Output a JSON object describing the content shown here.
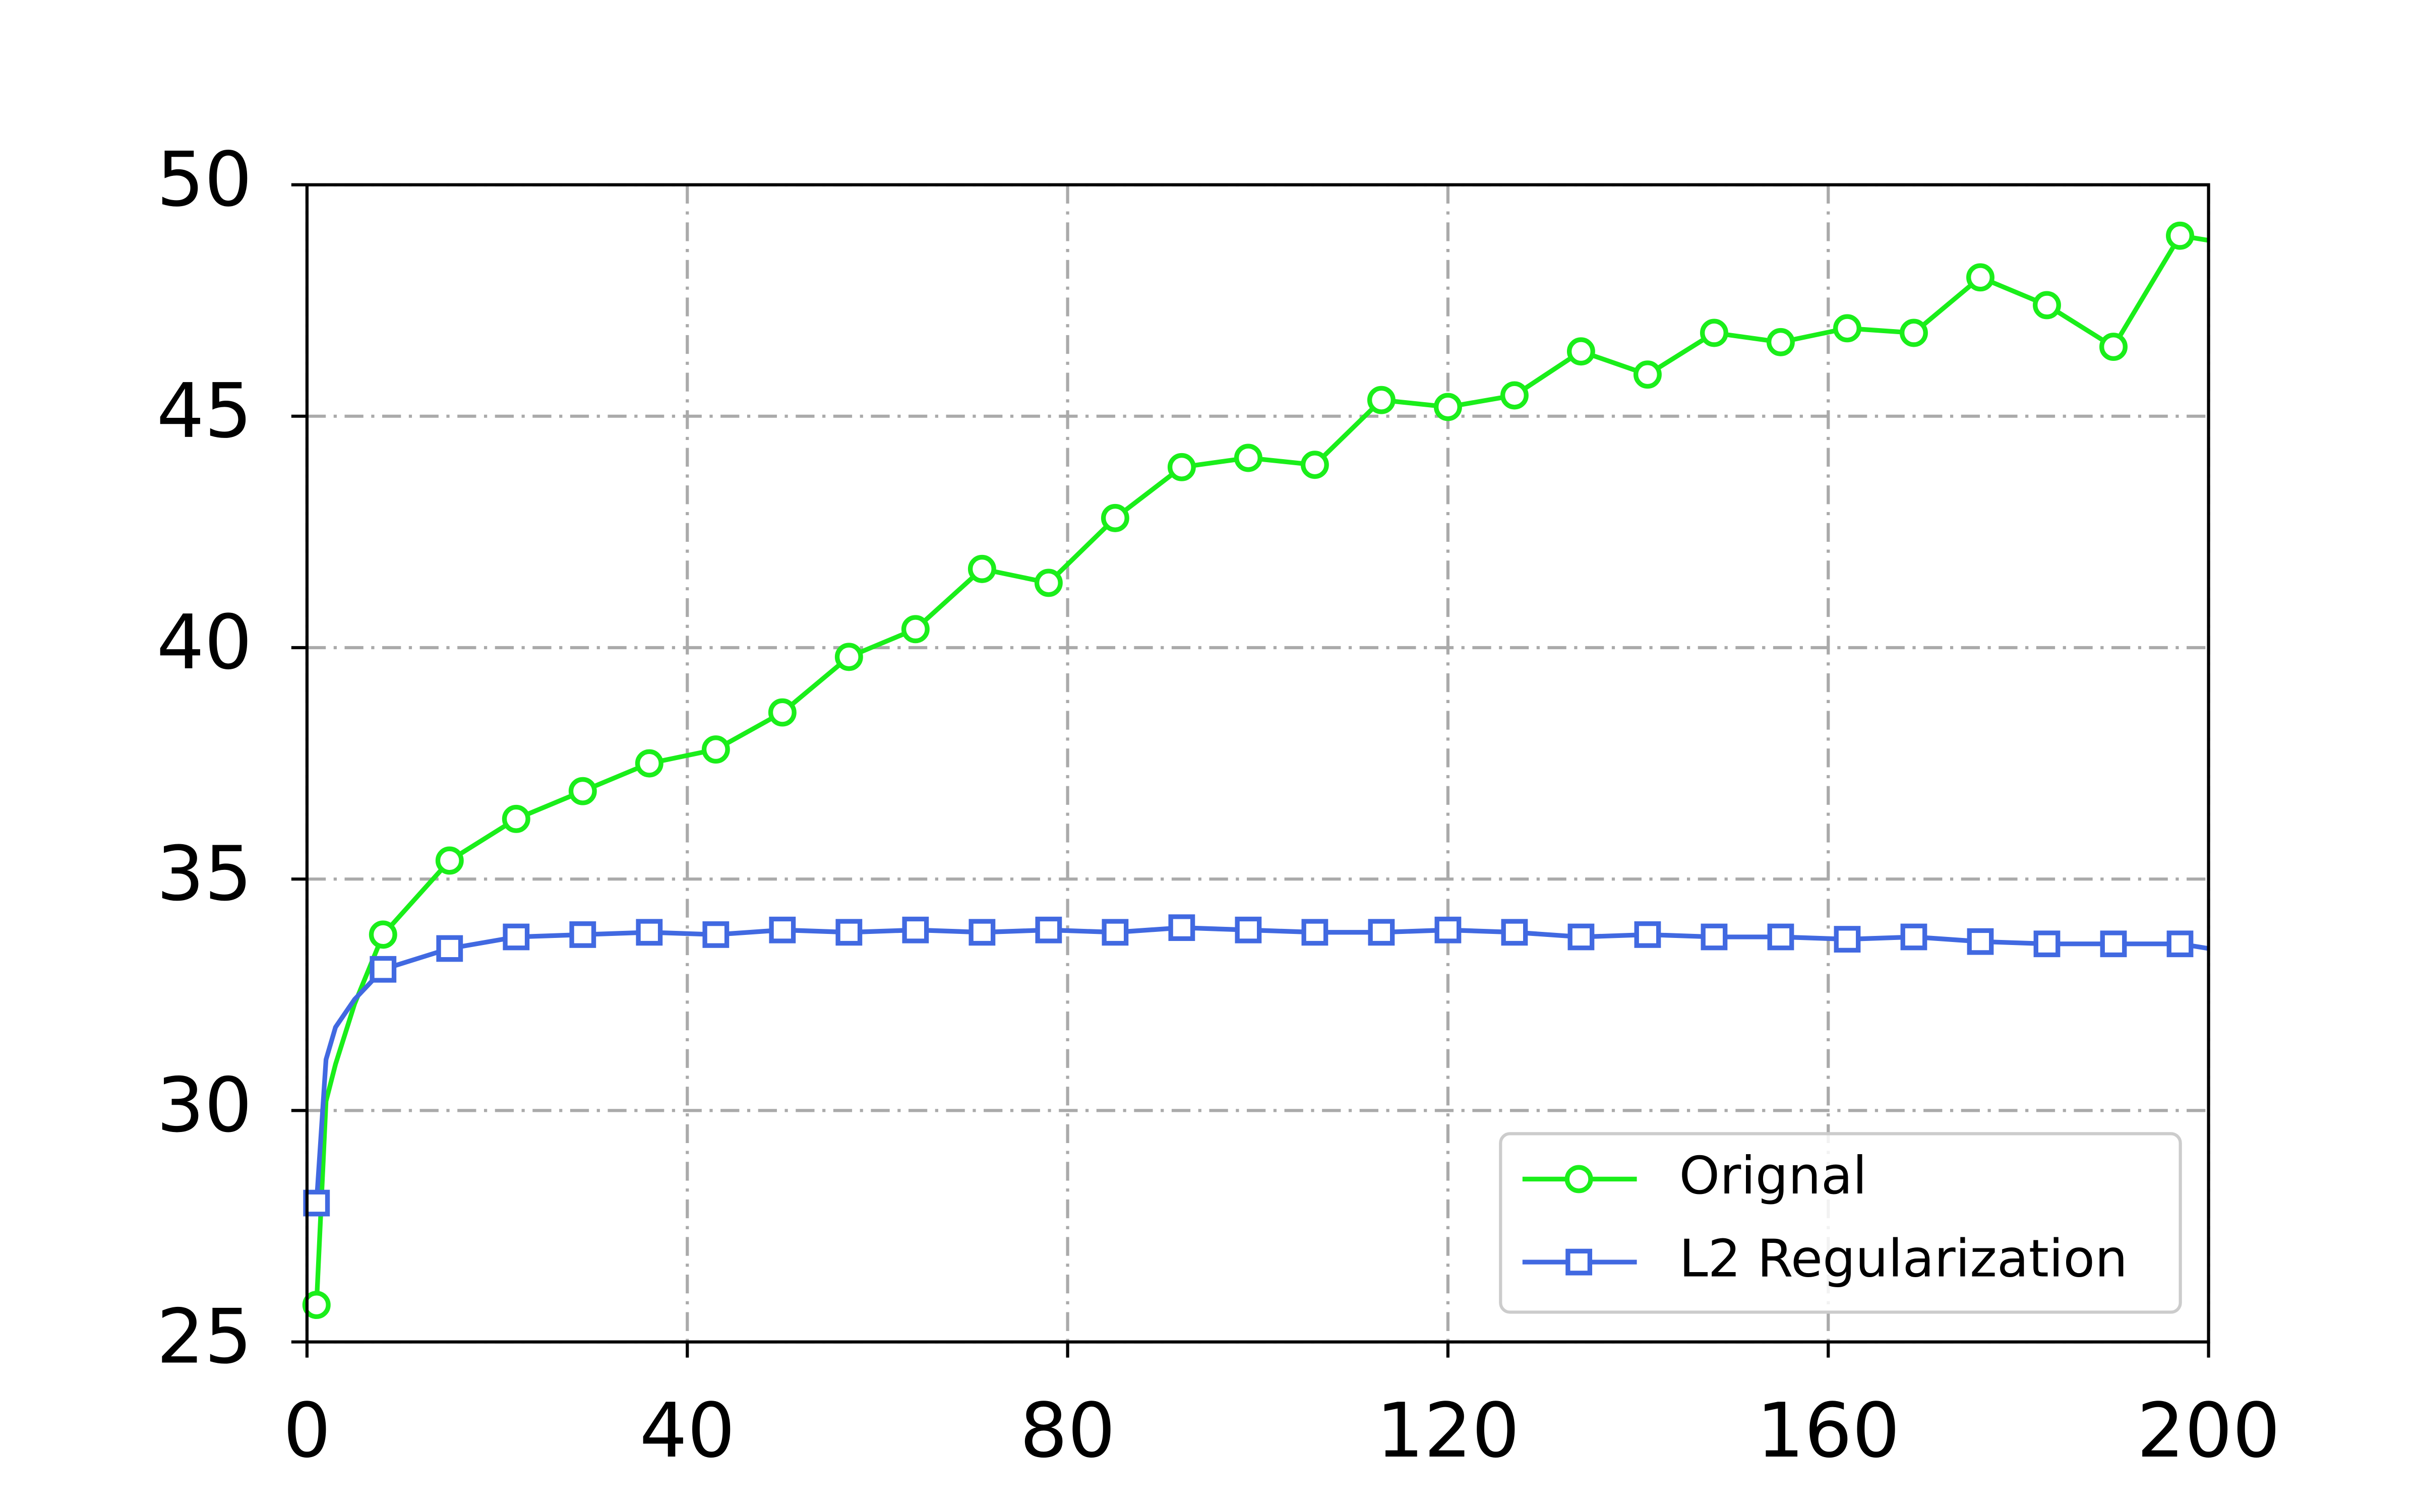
{
  "chart_data": {
    "type": "line",
    "x": [
      1,
      2,
      3,
      5,
      8,
      15,
      22,
      29,
      36,
      43,
      50,
      57,
      64,
      71,
      78,
      85,
      92,
      99,
      106,
      113,
      120,
      127,
      134,
      141,
      148,
      155,
      162,
      169,
      176,
      183,
      190,
      197,
      200
    ],
    "series": [
      {
        "name": "Orignal",
        "color": "#1aee1a",
        "marker": "circle",
        "values": [
          25.8,
          30.2,
          31.0,
          32.3,
          33.8,
          35.4,
          36.3,
          36.9,
          37.5,
          37.8,
          38.6,
          39.8,
          40.4,
          41.7,
          41.4,
          42.8,
          43.9,
          44.1,
          43.95,
          45.35,
          45.2,
          45.45,
          46.4,
          45.9,
          46.8,
          46.6,
          46.9,
          46.8,
          48.0,
          47.4,
          46.5,
          48.9,
          48.8
        ]
      },
      {
        "name": "L2 Regularization",
        "color": "#4169e1",
        "marker": "square",
        "values": [
          28.0,
          31.1,
          31.8,
          32.4,
          33.05,
          33.5,
          33.75,
          33.8,
          33.85,
          33.8,
          33.9,
          33.85,
          33.9,
          33.85,
          33.9,
          33.85,
          33.95,
          33.9,
          33.85,
          33.85,
          33.9,
          33.85,
          33.75,
          33.8,
          33.75,
          33.75,
          33.7,
          33.75,
          33.65,
          33.6,
          33.6,
          33.6,
          33.5
        ]
      }
    ],
    "marker_every": 7,
    "xlim": [
      0,
      200
    ],
    "xticks": [
      0,
      40,
      80,
      120,
      160,
      200
    ],
    "ylim": [
      25,
      50
    ],
    "yticks": [
      25,
      30,
      35,
      40,
      45,
      50
    ],
    "grid": true,
    "legend": "lower right"
  }
}
